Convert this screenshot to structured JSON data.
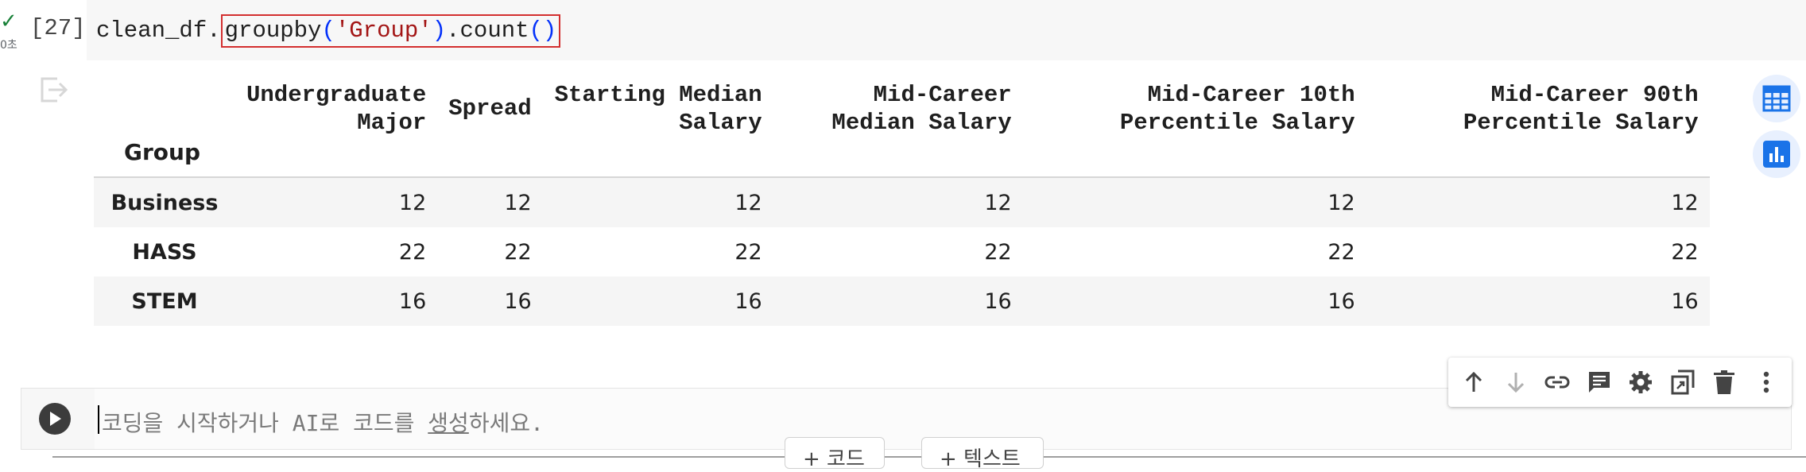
{
  "cell": {
    "status_check": "✓",
    "status_time": "0초",
    "exec_count": "[27]",
    "code_prefix": "clean_df.",
    "code_method1": "groupby",
    "code_paren_open": "(",
    "code_string": "'Group'",
    "code_paren_close": ")",
    "code_method2": ".count",
    "code_call": "()"
  },
  "output": {
    "index_name": "Group",
    "columns": [
      [
        "Undergraduate",
        "Major"
      ],
      [
        "Spread",
        ""
      ],
      [
        "Starting Median",
        "Salary"
      ],
      [
        "Mid-Career",
        "Median Salary"
      ],
      [
        "Mid-Career 10th",
        "Percentile Salary"
      ],
      [
        "Mid-Career 90th",
        "Percentile Salary"
      ]
    ],
    "rows": [
      {
        "label": "Business",
        "values": [
          "12",
          "12",
          "12",
          "12",
          "12",
          "12"
        ]
      },
      {
        "label": "HASS",
        "values": [
          "22",
          "22",
          "22",
          "22",
          "22",
          "22"
        ]
      },
      {
        "label": "STEM",
        "values": [
          "16",
          "16",
          "16",
          "16",
          "16",
          "16"
        ]
      }
    ],
    "side_icons": [
      "table-icon",
      "chart-icon"
    ]
  },
  "new_cell": {
    "placeholder_pre": "코딩을 시작하거나 AI로 코드를 ",
    "placeholder_link": "생성",
    "placeholder_post": "하세요.",
    "toolbar_icons": [
      "arrow-up-icon",
      "arrow-down-icon",
      "link-icon",
      "comment-icon",
      "gear-icon",
      "mirror-cell-icon",
      "trash-icon",
      "more-icon"
    ]
  },
  "add_buttons": {
    "code": "+ 코드",
    "text": "+ 텍스트"
  },
  "colors": {
    "accent": "#1a73e8",
    "highlight_border": "#d32f2f",
    "string": "#a31515",
    "paren": "#0431fa"
  }
}
